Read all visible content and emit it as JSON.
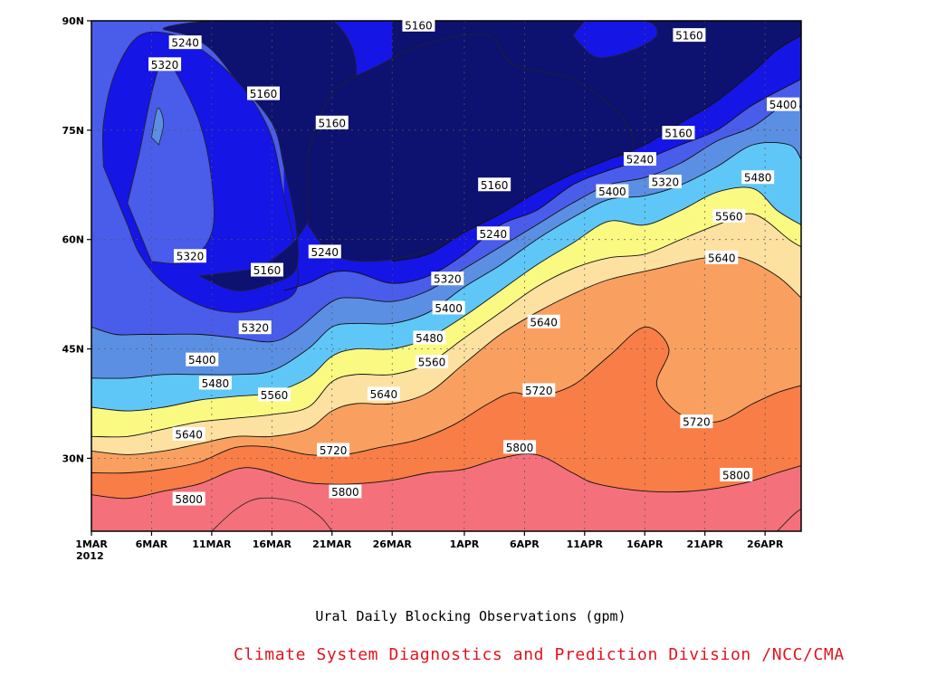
{
  "chart_data": {
    "type": "heatmap",
    "title": "Ural Daily Blocking Observations (gpm)",
    "credit": "Climate System Diagnostics and Prediction Division /NCC/CMA",
    "x_tick_labels": [
      "1MAR",
      "6MAR",
      "11MAR",
      "16MAR",
      "21MAR",
      "26MAR",
      "1APR",
      "6APR",
      "11APR",
      "16APR",
      "21APR",
      "26APR"
    ],
    "x_year_label": "2012",
    "y_tick_labels": [
      "30N",
      "45N",
      "60N",
      "75N",
      "90N"
    ],
    "y_ticks": [
      30,
      45,
      60,
      75,
      90
    ],
    "xlim_days": [
      0,
      59
    ],
    "ylim": [
      20,
      90
    ],
    "grid": true,
    "contour_levels": [
      5160,
      5240,
      5320,
      5400,
      5480,
      5560,
      5640,
      5720,
      5800,
      5880
    ],
    "level_colors": [
      "#0d1270",
      "#1515e6",
      "#4a5cea",
      "#5b8fe3",
      "#5ec7f7",
      "#fafa82",
      "#fce1a0",
      "#f9a060",
      "#f97d46",
      "#f4707a",
      "#f03c4a"
    ],
    "contours": [
      {
        "level": 5800,
        "pts": [
          [
            0,
            25
          ],
          [
            3,
            24.5
          ],
          [
            6,
            25.5
          ],
          [
            9,
            26.5
          ],
          [
            12,
            28.5
          ],
          [
            14,
            28.5
          ],
          [
            17,
            27
          ],
          [
            19,
            26.5
          ],
          [
            22,
            26.5
          ],
          [
            25,
            27
          ],
          [
            28,
            28
          ],
          [
            31,
            28.5
          ],
          [
            34,
            30
          ],
          [
            37,
            30.5
          ],
          [
            40,
            28
          ],
          [
            42,
            26.5
          ],
          [
            46,
            25.5
          ],
          [
            50,
            25.5
          ],
          [
            54,
            26.5
          ],
          [
            57,
            28
          ],
          [
            59,
            29
          ]
        ]
      },
      {
        "level": 5720,
        "pts": [
          [
            0,
            28
          ],
          [
            3,
            28
          ],
          [
            6,
            28.5
          ],
          [
            9,
            29.5
          ],
          [
            12,
            31.5
          ],
          [
            15,
            31.5
          ],
          [
            18,
            30.5
          ],
          [
            21,
            30.5
          ],
          [
            24,
            31.5
          ],
          [
            27,
            32.5
          ],
          [
            30,
            34.5
          ],
          [
            33,
            37.5
          ],
          [
            35,
            39
          ],
          [
            37,
            38.5
          ],
          [
            40,
            40
          ],
          [
            43,
            44
          ],
          [
            46,
            48
          ],
          [
            48,
            45
          ],
          [
            47,
            40
          ],
          [
            49,
            36
          ],
          [
            52,
            35
          ],
          [
            55,
            37.5
          ],
          [
            57,
            39
          ],
          [
            59,
            40
          ]
        ]
      },
      {
        "level": 5640,
        "pts": [
          [
            0,
            31
          ],
          [
            3,
            30.5
          ],
          [
            6,
            31
          ],
          [
            9,
            32
          ],
          [
            12,
            33
          ],
          [
            15,
            33
          ],
          [
            18,
            34
          ],
          [
            20,
            36.5
          ],
          [
            22,
            37.5
          ],
          [
            25,
            37.5
          ],
          [
            28,
            39
          ],
          [
            31,
            43
          ],
          [
            34,
            47
          ],
          [
            37,
            50
          ],
          [
            40,
            52.5
          ],
          [
            43,
            54.5
          ],
          [
            47,
            56
          ],
          [
            51,
            57.5
          ],
          [
            54,
            57.5
          ],
          [
            57,
            55
          ],
          [
            59,
            52
          ]
        ]
      },
      {
        "level": 5560,
        "pts": [
          [
            0,
            33
          ],
          [
            3,
            33
          ],
          [
            6,
            34
          ],
          [
            9,
            35
          ],
          [
            12,
            35.5
          ],
          [
            15,
            36
          ],
          [
            18,
            37
          ],
          [
            20,
            40.5
          ],
          [
            22,
            41.5
          ],
          [
            25,
            41.5
          ],
          [
            28,
            43
          ],
          [
            31,
            46.5
          ],
          [
            34,
            50
          ],
          [
            37,
            53.5
          ],
          [
            40,
            56
          ],
          [
            43,
            57.5
          ],
          [
            46,
            58
          ],
          [
            49,
            60
          ],
          [
            52,
            62
          ],
          [
            55,
            63.5
          ],
          [
            58,
            60
          ],
          [
            59,
            59
          ]
        ]
      },
      {
        "level": 5480,
        "pts": [
          [
            0,
            37
          ],
          [
            3,
            36.5
          ],
          [
            6,
            37
          ],
          [
            9,
            38
          ],
          [
            12,
            38.5
          ],
          [
            15,
            39
          ],
          [
            18,
            41
          ],
          [
            20,
            44
          ],
          [
            22,
            45
          ],
          [
            25,
            45
          ],
          [
            28,
            46.5
          ],
          [
            31,
            49.5
          ],
          [
            34,
            53
          ],
          [
            37,
            56.5
          ],
          [
            40,
            59.5
          ],
          [
            43,
            62.5
          ],
          [
            46,
            62
          ],
          [
            49,
            64
          ],
          [
            52,
            66.5
          ],
          [
            55,
            67
          ],
          [
            57,
            64
          ],
          [
            59,
            62
          ]
        ]
      },
      {
        "level": 5400,
        "pts": [
          [
            0,
            41
          ],
          [
            3,
            41
          ],
          [
            6,
            41.5
          ],
          [
            9,
            41.5
          ],
          [
            12,
            41.5
          ],
          [
            15,
            42
          ],
          [
            18,
            45
          ],
          [
            20,
            48
          ],
          [
            22,
            48.5
          ],
          [
            25,
            48.5
          ],
          [
            28,
            50
          ],
          [
            31,
            53.5
          ],
          [
            34,
            56.5
          ],
          [
            37,
            60
          ],
          [
            40,
            63
          ],
          [
            43,
            65.5
          ],
          [
            46,
            66
          ],
          [
            49,
            67.5
          ],
          [
            52,
            70
          ],
          [
            55,
            73
          ],
          [
            58,
            73
          ],
          [
            59,
            71
          ]
        ]
      },
      {
        "level": 5320,
        "pts": [
          [
            0,
            48
          ],
          [
            2,
            47
          ],
          [
            4,
            47
          ],
          [
            6,
            47
          ],
          [
            9,
            47
          ],
          [
            12,
            46.5
          ],
          [
            15,
            46
          ],
          [
            17,
            47.5
          ],
          [
            20,
            51.5
          ],
          [
            22,
            52
          ],
          [
            25,
            51.5
          ],
          [
            28,
            53
          ],
          [
            31,
            56
          ],
          [
            34,
            59
          ],
          [
            37,
            62
          ],
          [
            40,
            65
          ],
          [
            43,
            67.5
          ],
          [
            46,
            68.5
          ],
          [
            49,
            70.5
          ],
          [
            52,
            73.5
          ],
          [
            55,
            75.5
          ],
          [
            58,
            79
          ],
          [
            59,
            78
          ]
        ]
      },
      {
        "level": 5240,
        "pts": [
          [
            16,
            53
          ],
          [
            18,
            54
          ],
          [
            20,
            55.5
          ],
          [
            22,
            55.5
          ],
          [
            25,
            54
          ],
          [
            28,
            55
          ],
          [
            31,
            58
          ],
          [
            34,
            62
          ],
          [
            37,
            64
          ],
          [
            40,
            67.5
          ],
          [
            43,
            69.5
          ],
          [
            46,
            71
          ],
          [
            49,
            73
          ],
          [
            52,
            75
          ],
          [
            55,
            78.5
          ],
          [
            59,
            82
          ]
        ]
      },
      {
        "level": 5160,
        "pts": [
          [
            25,
            57
          ],
          [
            28,
            58
          ],
          [
            31,
            61
          ],
          [
            34,
            63.5
          ],
          [
            37,
            66.5
          ],
          [
            40,
            69
          ],
          [
            43,
            71
          ],
          [
            46,
            73
          ],
          [
            49,
            76
          ],
          [
            52,
            79
          ],
          [
            55,
            83
          ],
          [
            57,
            86
          ],
          [
            59,
            88
          ]
        ]
      }
    ],
    "contour_labels": [
      {
        "text": "5240",
        "x": 7.8,
        "y": 87
      },
      {
        "text": "5320",
        "x": 6.1,
        "y": 84
      },
      {
        "text": "5160",
        "x": 14.3,
        "y": 80
      },
      {
        "text": "5160",
        "x": 27.2,
        "y": 89.4
      },
      {
        "text": "5160",
        "x": 49.7,
        "y": 88
      },
      {
        "text": "5160",
        "x": 20,
        "y": 76
      },
      {
        "text": "5160",
        "x": 48.8,
        "y": 74.6
      },
      {
        "text": "5240",
        "x": 45.6,
        "y": 71
      },
      {
        "text": "5320",
        "x": 47.7,
        "y": 67.9
      },
      {
        "text": "5400",
        "x": 43.3,
        "y": 66.6
      },
      {
        "text": "5160",
        "x": 33.5,
        "y": 67.5
      },
      {
        "text": "5400",
        "x": 57.5,
        "y": 78.5
      },
      {
        "text": "5480",
        "x": 55.4,
        "y": 68.5
      },
      {
        "text": "5560",
        "x": 53,
        "y": 63.2
      },
      {
        "text": "5640",
        "x": 52.4,
        "y": 57.5
      },
      {
        "text": "5240",
        "x": 33.4,
        "y": 60.8
      },
      {
        "text": "5240",
        "x": 19.4,
        "y": 58.3
      },
      {
        "text": "5320",
        "x": 8.2,
        "y": 57.7
      },
      {
        "text": "5160",
        "x": 14.6,
        "y": 55.8
      },
      {
        "text": "5320",
        "x": 29.6,
        "y": 54.6
      },
      {
        "text": "5400",
        "x": 29.7,
        "y": 50.6
      },
      {
        "text": "5320",
        "x": 13.6,
        "y": 47.9
      },
      {
        "text": "5480",
        "x": 28.1,
        "y": 46.5
      },
      {
        "text": "5640",
        "x": 37.6,
        "y": 48.7
      },
      {
        "text": "5400",
        "x": 9.2,
        "y": 43.5
      },
      {
        "text": "5480",
        "x": 10.3,
        "y": 40.3
      },
      {
        "text": "5560",
        "x": 28.3,
        "y": 43.2
      },
      {
        "text": "5560",
        "x": 15.2,
        "y": 38.7
      },
      {
        "text": "5640",
        "x": 24.3,
        "y": 38.8
      },
      {
        "text": "5720",
        "x": 37.2,
        "y": 39.3
      },
      {
        "text": "5640",
        "x": 8.1,
        "y": 33.3
      },
      {
        "text": "5720",
        "x": 50.3,
        "y": 35
      },
      {
        "text": "5800",
        "x": 35.6,
        "y": 31.5
      },
      {
        "text": "5720",
        "x": 20.1,
        "y": 31.1
      },
      {
        "text": "5800",
        "x": 8.1,
        "y": 24.4
      },
      {
        "text": "5800",
        "x": 21.1,
        "y": 25.4
      },
      {
        "text": "5800",
        "x": 53.6,
        "y": 27.7
      }
    ]
  }
}
